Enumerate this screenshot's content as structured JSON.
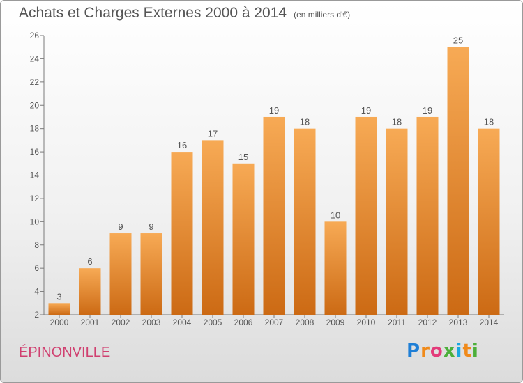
{
  "header": {
    "title": "Achats et Charges Externes 2000 à 2014",
    "subtitle": "(en milliers d'€)"
  },
  "footer": {
    "commune": "ÉPINONVILLE",
    "logo": [
      "P",
      "r",
      "o",
      "x",
      "i",
      "t",
      "i"
    ]
  },
  "colors": {
    "bar_top": "#f7aa55",
    "bar_bottom": "#cc6a14",
    "text": "#555555",
    "commune": "#d04070"
  },
  "chart_data": {
    "type": "bar",
    "categories": [
      "2000",
      "2001",
      "2002",
      "2003",
      "2004",
      "2005",
      "2006",
      "2007",
      "2008",
      "2009",
      "2010",
      "2011",
      "2012",
      "2013",
      "2014"
    ],
    "values": [
      3,
      6,
      9,
      9,
      16,
      17,
      15,
      19,
      18,
      10,
      19,
      18,
      19,
      25,
      18
    ],
    "ylim": [
      2,
      26
    ],
    "yticks": [
      2,
      4,
      6,
      8,
      10,
      12,
      14,
      16,
      18,
      20,
      22,
      24,
      26
    ],
    "grid": false,
    "data_labels": true
  }
}
